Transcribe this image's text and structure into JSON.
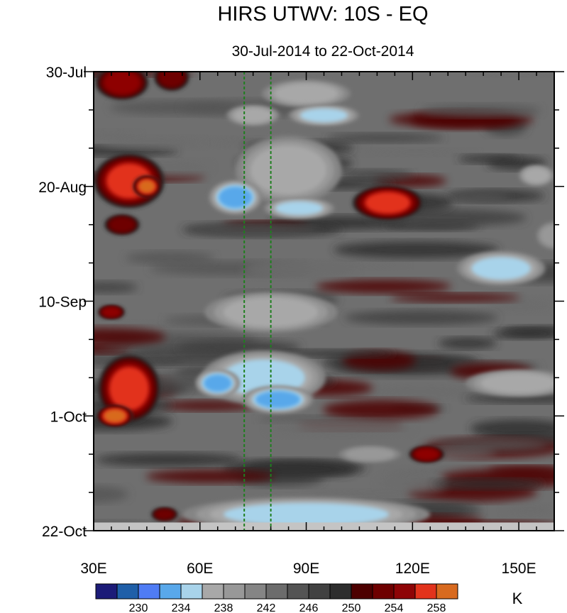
{
  "chart_data": {
    "type": "heatmap",
    "title": "HIRS UTWV: 10S - EQ",
    "subtitle": "30-Jul-2014 to 22-Oct-2014",
    "x_axis": {
      "range": [
        30,
        160
      ],
      "ticks": [
        {
          "value": 30,
          "label": "30E"
        },
        {
          "value": 60,
          "label": "60E"
        },
        {
          "value": 90,
          "label": "90E"
        },
        {
          "value": 120,
          "label": "120E"
        },
        {
          "value": 150,
          "label": "150E"
        }
      ]
    },
    "y_axis": {
      "range_days": [
        0,
        84
      ],
      "ticks": [
        {
          "day": 0,
          "label": "30-Jul"
        },
        {
          "day": 21,
          "label": "20-Aug"
        },
        {
          "day": 42,
          "label": "10-Sep"
        },
        {
          "day": 63,
          "label": "1-Oct"
        },
        {
          "day": 84,
          "label": "22-Oct"
        }
      ]
    },
    "reference_lines_lon": [
      72.5,
      80
    ],
    "colorbar": {
      "units": "K",
      "levels": [
        228,
        230,
        232,
        234,
        236,
        238,
        240,
        242,
        244,
        246,
        248,
        250,
        252,
        254,
        256,
        258
      ],
      "labels": [
        {
          "value": 230,
          "text": "230"
        },
        {
          "value": 234,
          "text": "234"
        },
        {
          "value": 238,
          "text": "238"
        },
        {
          "value": 242,
          "text": "242"
        },
        {
          "value": 246,
          "text": "246"
        },
        {
          "value": 250,
          "text": "250"
        },
        {
          "value": 254,
          "text": "254"
        },
        {
          "value": 258,
          "text": "258"
        }
      ],
      "colors": [
        "#1c1b78",
        "#1f5fa8",
        "#4f7cf5",
        "#59a8ea",
        "#a8d3ea",
        "#a8a8a8",
        "#989898",
        "#858585",
        "#6c6c6c",
        "#545454",
        "#414141",
        "#2d2d2d",
        "#4d0000",
        "#6e0000",
        "#8e0406",
        "#e2331c",
        "#d86a1f"
      ]
    },
    "features": [
      {
        "lon": 38,
        "day": 2,
        "value": 255,
        "rx": 6,
        "ry": 2.5
      },
      {
        "lon": 52,
        "day": 1,
        "value": 252,
        "rx": 4,
        "ry": 2
      },
      {
        "lon": 40,
        "day": 20,
        "value": 257,
        "rx": 8,
        "ry": 4
      },
      {
        "lon": 45,
        "day": 21,
        "value": 258,
        "rx": 3,
        "ry": 1.5
      },
      {
        "lon": 38,
        "day": 28,
        "value": 253,
        "rx": 4,
        "ry": 1.5
      },
      {
        "lon": 35,
        "day": 44,
        "value": 254,
        "rx": 3,
        "ry": 1
      },
      {
        "lon": 40,
        "day": 58,
        "value": 256,
        "rx": 7,
        "ry": 5
      },
      {
        "lon": 36,
        "day": 63,
        "value": 258,
        "rx": 4,
        "ry": 1.5
      },
      {
        "lon": 113,
        "day": 24,
        "value": 256,
        "rx": 8,
        "ry": 2.5
      },
      {
        "lon": 124,
        "day": 70,
        "value": 254,
        "rx": 4,
        "ry": 1.2
      },
      {
        "lon": 50,
        "day": 81,
        "value": 253,
        "rx": 3,
        "ry": 1
      },
      {
        "lon": 90,
        "day": 4,
        "value": 236,
        "rx": 10,
        "ry": 2
      },
      {
        "lon": 95,
        "day": 8,
        "value": 234,
        "rx": 8,
        "ry": 1.5
      },
      {
        "lon": 85,
        "day": 18,
        "value": 236,
        "rx": 12,
        "ry": 5
      },
      {
        "lon": 70,
        "day": 23,
        "value": 232,
        "rx": 6,
        "ry": 2.5
      },
      {
        "lon": 88,
        "day": 25,
        "value": 234,
        "rx": 8,
        "ry": 1.5
      },
      {
        "lon": 80,
        "day": 44,
        "value": 236,
        "rx": 15,
        "ry": 3
      },
      {
        "lon": 78,
        "day": 56,
        "value": 233,
        "rx": 14,
        "ry": 4
      },
      {
        "lon": 65,
        "day": 57,
        "value": 232,
        "rx": 5,
        "ry": 2
      },
      {
        "lon": 82,
        "day": 60,
        "value": 232,
        "rx": 8,
        "ry": 2
      },
      {
        "lon": 145,
        "day": 36,
        "value": 233,
        "rx": 10,
        "ry": 2.5
      },
      {
        "lon": 150,
        "day": 57,
        "value": 236,
        "rx": 12,
        "ry": 2
      },
      {
        "lon": 90,
        "day": 81,
        "value": 234,
        "rx": 28,
        "ry": 2.5
      },
      {
        "lon": 108,
        "day": 70,
        "value": 237,
        "rx": 7,
        "ry": 1.2
      },
      {
        "lon": 75,
        "day": 8,
        "value": 236,
        "rx": 6,
        "ry": 1.5
      },
      {
        "lon": 155,
        "day": 19,
        "value": 236,
        "rx": 4,
        "ry": 1.5
      },
      {
        "lon": 160,
        "day": 30,
        "value": 237,
        "rx": 4,
        "ry": 2
      }
    ],
    "bottom_missing_band_days": [
      82.5,
      84
    ]
  }
}
